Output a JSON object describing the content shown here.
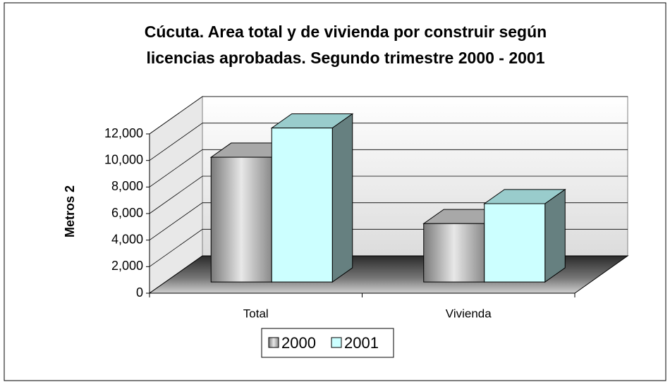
{
  "chart_data": {
    "type": "bar3d",
    "title": "Cúcuta. Area total y de vivienda por construir según",
    "subtitle": "licencias aprobadas.  Segundo  trimestre 2000 - 2001",
    "y_label": "Metros 2",
    "categories": [
      "Total",
      "Vivienda"
    ],
    "series": [
      {
        "name": "2000",
        "color": "#c0c0c0",
        "values": [
          9400,
          4400
        ]
      },
      {
        "name": "2001",
        "color": "#ccffff",
        "values": [
          11600,
          5900
        ]
      }
    ],
    "ylim": [
      0,
      12000
    ],
    "yticks": [
      0,
      {
        "value": 2000,
        "label": "2,000"
      },
      {
        "value": 4000,
        "label": "4,000"
      },
      {
        "value": 6000,
        "label": "6,000"
      },
      {
        "value": 8000,
        "label": "8,000"
      },
      {
        "value": 10000,
        "label": "10,000"
      },
      {
        "value": 12000,
        "label": "12,000"
      }
    ],
    "grid": true,
    "legend": "bottom"
  }
}
